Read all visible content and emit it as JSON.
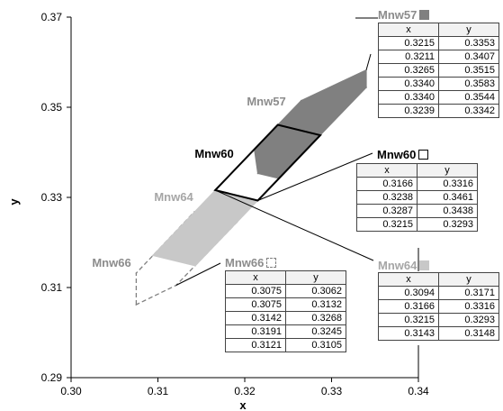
{
  "chart_data": {
    "type": "scatter",
    "title": "",
    "xlabel": "x",
    "ylabel": "y",
    "xlim": [
      0.3,
      0.34
    ],
    "ylim": [
      0.29,
      0.37
    ],
    "xticks": [
      "0.30",
      "0.31",
      "0.32",
      "0.33",
      "0.34"
    ],
    "yticks": [
      "0.29",
      "0.31",
      "0.33",
      "0.35",
      "0.37"
    ],
    "grid": false,
    "table_headers": [
      "x",
      "y"
    ],
    "series": [
      {
        "name": "Mnw57",
        "fill": "#808080",
        "stroke": "#808080",
        "style": "filled",
        "label_color": "#8c8c8c",
        "points": [
          [
            0.3215,
            0.3353
          ],
          [
            0.3211,
            0.3407
          ],
          [
            0.3265,
            0.3515
          ],
          [
            0.334,
            0.3583
          ],
          [
            0.334,
            0.3544
          ],
          [
            0.3239,
            0.3342
          ]
        ]
      },
      {
        "name": "Mnw60",
        "fill": "#ffffff",
        "stroke": "#000000",
        "style": "outline",
        "label_color": "#000000",
        "points": [
          [
            0.3166,
            0.3316
          ],
          [
            0.3238,
            0.3461
          ],
          [
            0.3287,
            0.3438
          ],
          [
            0.3215,
            0.3293
          ]
        ]
      },
      {
        "name": "Mnw64",
        "fill": "#c8c8c8",
        "stroke": "#c8c8c8",
        "style": "filled",
        "label_color": "#a6a6a6",
        "points": [
          [
            0.3094,
            0.3171
          ],
          [
            0.3166,
            0.3316
          ],
          [
            0.3215,
            0.3293
          ],
          [
            0.3143,
            0.3148
          ]
        ]
      },
      {
        "name": "Mnw66",
        "fill": "none",
        "stroke": "#808080",
        "style": "dashed",
        "label_color": "#8c8c8c",
        "points": [
          [
            0.3075,
            0.3062
          ],
          [
            0.3075,
            0.3132
          ],
          [
            0.3142,
            0.3268
          ],
          [
            0.3191,
            0.3245
          ],
          [
            0.3121,
            0.3105
          ]
        ]
      }
    ]
  }
}
